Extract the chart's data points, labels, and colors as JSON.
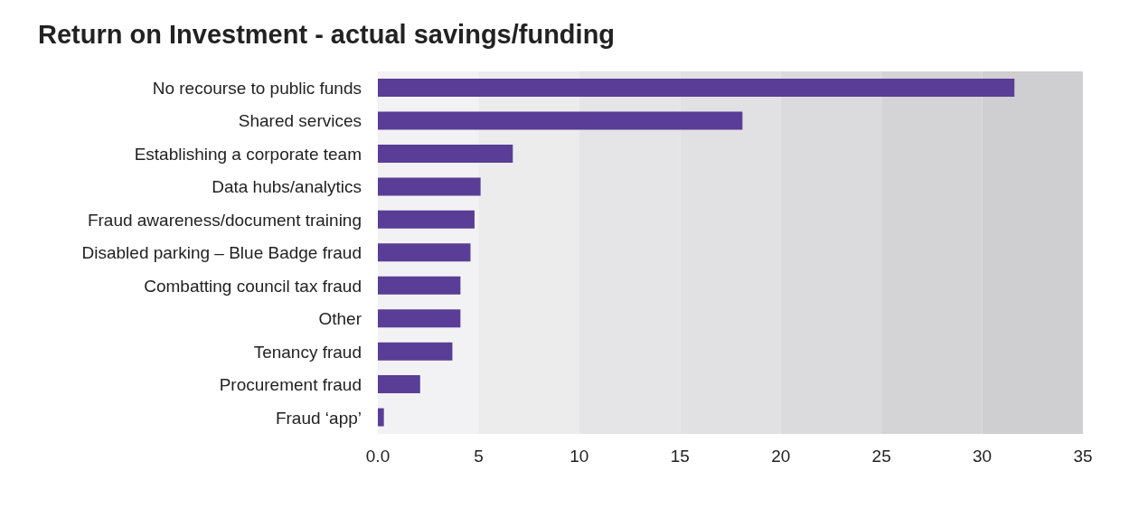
{
  "chart_data": {
    "type": "bar",
    "orientation": "horizontal",
    "title": "Return on Investment - actual savings/funding",
    "categories": [
      "No recourse to public funds",
      "Shared services",
      "Establishing a corporate team",
      "Data hubs/analytics",
      "Fraud awareness/document training",
      "Disabled parking – Blue Badge fraud",
      "Combatting council tax fraud",
      "Other",
      "Tenancy fraud",
      "Procurement fraud",
      "Fraud ‘app’"
    ],
    "values": [
      31.6,
      18.1,
      6.7,
      5.1,
      4.8,
      4.6,
      4.1,
      4.1,
      3.7,
      2.1,
      0.3
    ],
    "color": "#5a3d96",
    "xlim": [
      0,
      35
    ],
    "xticks": [
      {
        "value": 0,
        "label": "0.0"
      },
      5,
      10,
      15,
      20,
      25,
      30,
      35
    ],
    "grid": false,
    "bands": [
      {
        "axis": "x",
        "from": 0,
        "to": 5,
        "color": "#f2f2f4"
      },
      {
        "axis": "x",
        "from": 5,
        "to": 10,
        "color": "#ececed"
      },
      {
        "axis": "x",
        "from": 10,
        "to": 15,
        "color": "#e5e5e7"
      },
      {
        "axis": "x",
        "from": 15,
        "to": 20,
        "color": "#e1e1e3"
      },
      {
        "axis": "x",
        "from": 20,
        "to": 25,
        "color": "#dbdbdd"
      },
      {
        "axis": "x",
        "from": 25,
        "to": 30,
        "color": "#d4d4d6"
      },
      {
        "axis": "x",
        "from": 30,
        "to": 35,
        "color": "#cfcfd1"
      }
    ]
  }
}
